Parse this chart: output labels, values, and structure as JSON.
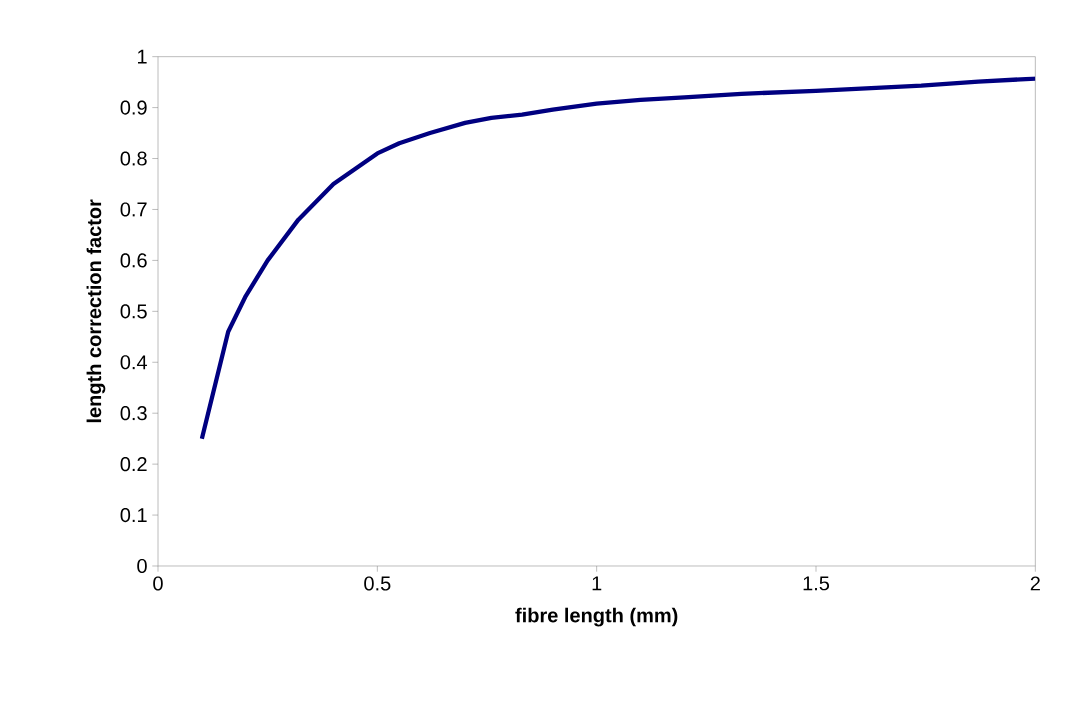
{
  "chart_data": {
    "type": "line",
    "xlabel": "fibre length (mm)",
    "ylabel": "length correction factor",
    "series": [
      {
        "color": "#000080",
        "x": [
          0.1,
          0.16,
          0.2,
          0.25,
          0.32,
          0.4,
          0.5,
          0.55,
          0.62,
          0.7,
          0.76,
          0.83,
          0.9,
          1.0,
          1.1,
          1.2,
          1.33,
          1.5,
          1.74,
          1.87,
          2.0
        ],
        "values": [
          0.25,
          0.46,
          0.53,
          0.6,
          0.68,
          0.75,
          0.81,
          0.83,
          0.85,
          0.87,
          0.88,
          0.886,
          0.896,
          0.908,
          0.915,
          0.92,
          0.927,
          0.933,
          0.943,
          0.951,
          0.957
        ]
      }
    ],
    "xlim": [
      0,
      2
    ],
    "xticks": [
      0,
      0.5,
      1,
      1.5,
      2
    ],
    "ylim": [
      0,
      1
    ],
    "yticks": [
      0,
      0.1,
      0.2,
      0.3,
      0.4,
      0.5,
      0.6,
      0.7,
      0.8,
      0.9,
      1
    ],
    "grid": false,
    "marker": "none",
    "line_style": "solid"
  }
}
